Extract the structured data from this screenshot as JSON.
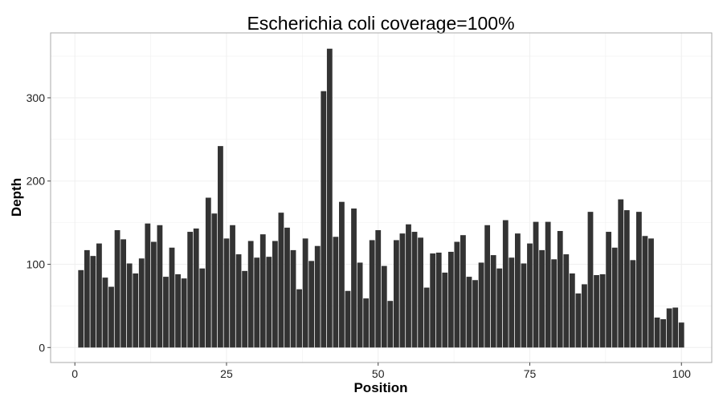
{
  "chart_data": {
    "type": "bar",
    "title": "Escherichia coli coverage=100%",
    "xlabel": "Position",
    "ylabel": "Depth",
    "x": [
      1,
      2,
      3,
      4,
      5,
      6,
      7,
      8,
      9,
      10,
      11,
      12,
      13,
      14,
      15,
      16,
      17,
      18,
      19,
      20,
      21,
      22,
      23,
      24,
      25,
      26,
      27,
      28,
      29,
      30,
      31,
      32,
      33,
      34,
      35,
      36,
      37,
      38,
      39,
      40,
      41,
      42,
      43,
      44,
      45,
      46,
      47,
      48,
      49,
      50,
      51,
      52,
      53,
      54,
      55,
      56,
      57,
      58,
      59,
      60,
      61,
      62,
      63,
      64,
      65,
      66,
      67,
      68,
      69,
      70,
      71,
      72,
      73,
      74,
      75,
      76,
      77,
      78,
      79,
      80,
      81,
      82,
      83,
      84,
      85,
      86,
      87,
      88,
      89,
      90,
      91,
      92,
      93,
      94,
      95,
      96,
      97,
      98,
      99,
      100
    ],
    "values": [
      93,
      117,
      110,
      125,
      84,
      73,
      141,
      130,
      101,
      89,
      107,
      149,
      127,
      147,
      85,
      120,
      88,
      83,
      139,
      143,
      95,
      180,
      161,
      242,
      131,
      147,
      112,
      92,
      128,
      108,
      136,
      109,
      128,
      162,
      144,
      117,
      70,
      131,
      104,
      122,
      308,
      359,
      133,
      175,
      68,
      167,
      102,
      59,
      129,
      141,
      98,
      56,
      129,
      137,
      148,
      139,
      132,
      72,
      113,
      114,
      90,
      115,
      127,
      135,
      85,
      81,
      102,
      147,
      111,
      95,
      153,
      108,
      137,
      101,
      125,
      151,
      117,
      151,
      106,
      140,
      112,
      89,
      65,
      76,
      163,
      87,
      88,
      139,
      120,
      178,
      165,
      105,
      163,
      134,
      131,
      36,
      34,
      47,
      48,
      30
    ],
    "xlim": [
      -4,
      105
    ],
    "ylim": [
      -18,
      378
    ],
    "xticks": [
      0,
      25,
      50,
      75,
      100
    ],
    "yticks": [
      0,
      100,
      200,
      300
    ],
    "grid": true,
    "bar_color": "#333333",
    "grid_color": "#f0f0f0",
    "panel_border_color": "#aaaaaa"
  }
}
